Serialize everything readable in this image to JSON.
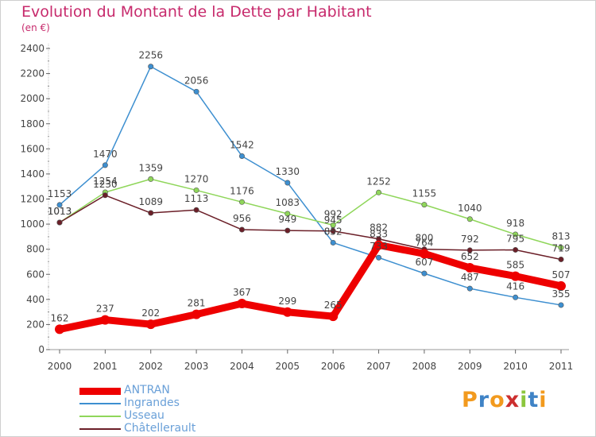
{
  "header": {
    "title": "Evolution du Montant de la Dette par Habitant",
    "subtitle": "(en €)"
  },
  "logo": {
    "text": "Proxiti"
  },
  "chart_data": {
    "type": "line",
    "title": "Evolution du Montant de la Dette par Habitant",
    "subtitle": "(en €)",
    "xlabel": "",
    "ylabel": "",
    "x": [
      "2000",
      "2001",
      "2002",
      "2003",
      "2004",
      "2005",
      "2006",
      "2007",
      "2008",
      "2009",
      "2010",
      "2011"
    ],
    "ylim": [
      0,
      2400
    ],
    "yticks": [
      0,
      200,
      400,
      600,
      800,
      1000,
      1200,
      1400,
      1600,
      1800,
      2000,
      2200,
      2400
    ],
    "grid": false,
    "legend_position": "bottom-left",
    "series": [
      {
        "name": "ANTRAN",
        "color": "#ee0000",
        "values": [
          162,
          237,
          202,
          281,
          367,
          299,
          265,
          833,
          764,
          652,
          585,
          507
        ]
      },
      {
        "name": "Ingrandes",
        "color": "#3d8fd0",
        "values": [
          1153,
          1470,
          2256,
          2056,
          1542,
          1330,
          852,
          733,
          607,
          487,
          416,
          355
        ]
      },
      {
        "name": "Usseau",
        "color": "#8fd65a",
        "values": [
          1013,
          1254,
          1359,
          1270,
          1176,
          1083,
          992,
          1252,
          1155,
          1040,
          918,
          813
        ]
      },
      {
        "name": "Châtellerault",
        "color": "#6b1f28",
        "values": [
          1013,
          1230,
          1089,
          1113,
          956,
          949,
          945,
          882,
          800,
          792,
          795,
          719
        ]
      }
    ]
  }
}
